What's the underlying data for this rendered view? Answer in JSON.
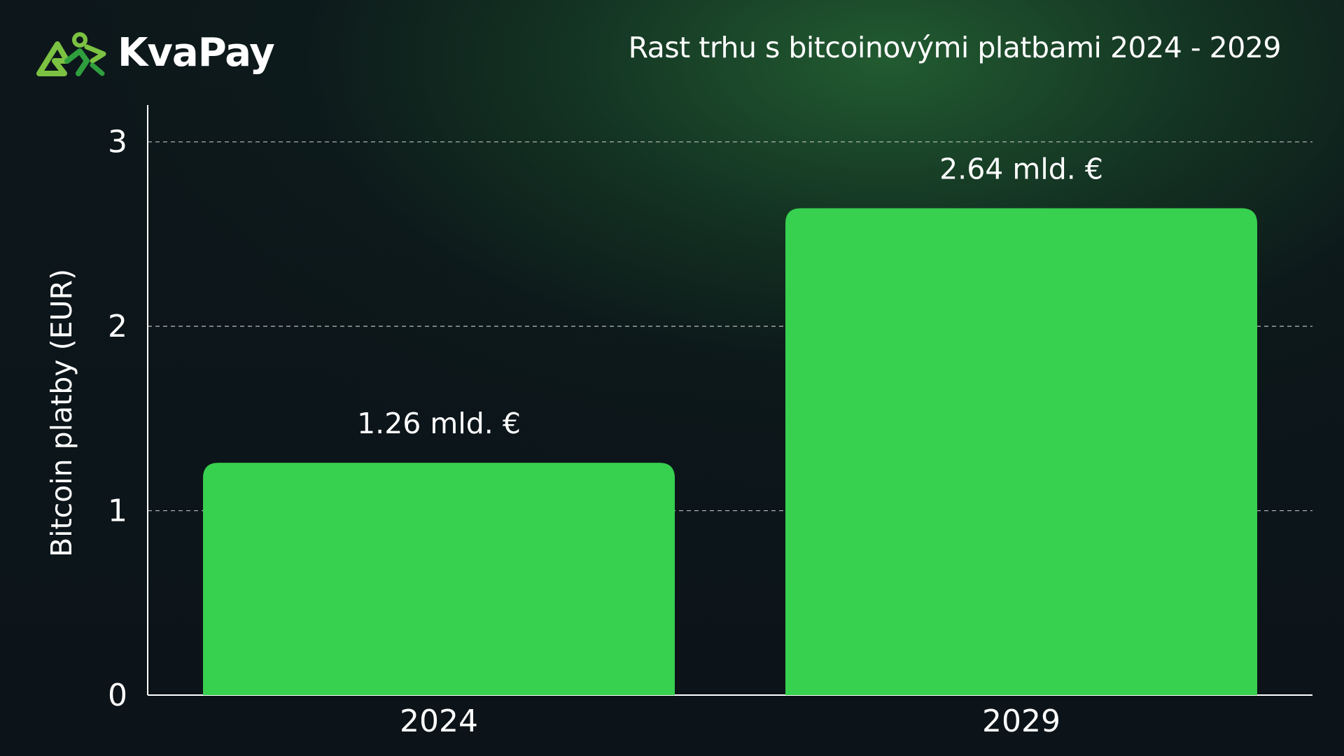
{
  "brand": {
    "name": "KvaPay",
    "logo_icon": "frog-logo-icon",
    "logo_colors": [
      "#7cc242",
      "#2f9e3e"
    ]
  },
  "colors": {
    "bar": "#37d04f",
    "background": "#0c1419",
    "text": "#ffffff",
    "grid": "#d8d8d8"
  },
  "chart_data": {
    "type": "bar",
    "title": "Rast trhu s bitcoinovými platbami 2024 - 2029",
    "xlabel": "",
    "ylabel": "Bitcoin platby (EUR)",
    "categories": [
      "2024",
      "2029"
    ],
    "values": [
      1.26,
      2.64
    ],
    "data_labels": [
      "1.26 mld. €",
      "2.64 mld. €"
    ],
    "ylim": [
      0,
      3.2
    ],
    "yticks": [
      0,
      1,
      2,
      3
    ],
    "grid": "horizontal dashed",
    "legend": "none"
  }
}
